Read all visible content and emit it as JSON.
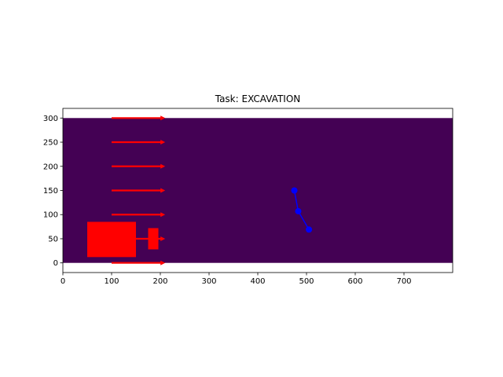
{
  "chart_data": {
    "type": "plot",
    "title": "Task: EXCAVATION",
    "xlim": [
      0,
      800
    ],
    "ylim": [
      -20,
      320
    ],
    "xticks": [
      0,
      100,
      200,
      300,
      400,
      500,
      600,
      700
    ],
    "yticks": [
      0,
      50,
      100,
      150,
      200,
      250,
      300
    ],
    "background_region": {
      "x": [
        0,
        800
      ],
      "y": [
        0,
        300
      ],
      "color": "#440154"
    },
    "arrows": {
      "color": "#ff0000",
      "x_start": 100,
      "x_end": 210,
      "y_values": [
        0,
        50,
        100,
        150,
        200,
        250,
        300
      ]
    },
    "rectangles": [
      {
        "name": "vehicle-body",
        "x0": 50,
        "y0": 12,
        "x1": 150,
        "y1": 85,
        "color": "#ff0000"
      },
      {
        "name": "vehicle-blade",
        "x0": 175,
        "y0": 28,
        "x1": 196,
        "y1": 72,
        "color": "#ff0000"
      }
    ],
    "series": [
      {
        "color": "#0000ff",
        "x": [
          475,
          483,
          505
        ],
        "y": [
          150,
          107,
          69
        ]
      }
    ]
  }
}
